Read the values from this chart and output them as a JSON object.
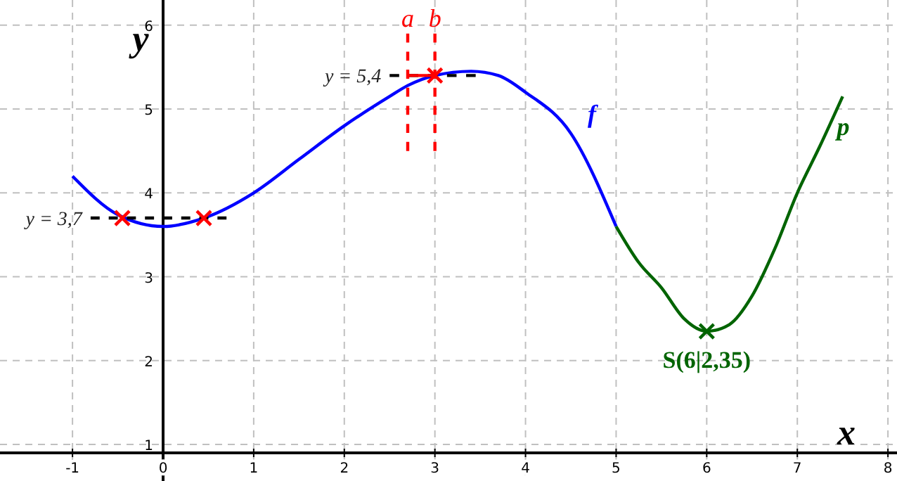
{
  "chart_data": {
    "type": "line",
    "xlabel": "x",
    "ylabel": "y",
    "xlim": [
      -1.8,
      8.1
    ],
    "ylim": [
      0.9,
      6.3
    ],
    "xticks": [
      -1,
      0,
      1,
      2,
      3,
      4,
      5,
      6,
      7,
      8
    ],
    "yticks": [
      1,
      2,
      3,
      4,
      5,
      6
    ],
    "grid": true,
    "series": [
      {
        "name": "f",
        "color": "#0000ff",
        "line_style": "solid",
        "x": [
          -1,
          -0.5,
          0,
          0.45,
          1,
          1.5,
          2,
          2.5,
          2.7,
          3,
          3.4,
          3.7,
          4,
          4.5,
          5
        ],
        "values": [
          4.2,
          3.74,
          3.6,
          3.7,
          4.0,
          4.4,
          4.8,
          5.15,
          5.28,
          5.4,
          5.45,
          5.4,
          5.2,
          4.71,
          3.6
        ]
      },
      {
        "name": "p",
        "color": "#006400",
        "line_style": "solid",
        "x": [
          5,
          5.25,
          5.5,
          5.75,
          6,
          6.25,
          6.5,
          6.75,
          7,
          7.25,
          7.5
        ],
        "values": [
          3.6,
          3.17,
          2.87,
          2.5,
          2.35,
          2.43,
          2.77,
          3.33,
          4.0,
          4.56,
          5.15
        ]
      },
      {
        "name": "y = 3,7",
        "type": "line",
        "color": "#000000",
        "line_style": "dashed",
        "x": [
          -0.8,
          0.7
        ],
        "values": [
          3.7,
          3.7
        ]
      },
      {
        "name": "y = 5,4",
        "type": "line",
        "color": "#000000",
        "line_style": "dashed",
        "x": [
          2.5,
          3.45
        ],
        "values": [
          5.4,
          5.4
        ]
      },
      {
        "name": "a",
        "type": "line",
        "color": "#ff0000",
        "line_style": "dashed",
        "x": [
          2.7,
          2.7
        ],
        "values": [
          4.5,
          5.9
        ]
      },
      {
        "name": "b",
        "type": "line",
        "color": "#ff0000",
        "line_style": "dashed",
        "x": [
          3,
          3
        ],
        "values": [
          4.5,
          5.9
        ]
      },
      {
        "type": "line",
        "color": "#ff0000",
        "line_style": "solid",
        "x": [
          2.7,
          3
        ],
        "values": [
          5.4,
          5.4
        ]
      },
      {
        "type": "scatter",
        "color": "#ff0000",
        "marker": "cross",
        "x": [
          -0.45,
          0.45,
          3
        ],
        "values": [
          3.7,
          3.7,
          5.4
        ]
      },
      {
        "type": "scatter",
        "color": "#006400",
        "marker": "cross",
        "x": [
          6
        ],
        "values": [
          2.35
        ]
      }
    ],
    "annotations": [
      {
        "text": "S(6|2,35)",
        "x": 6,
        "y": 2.35
      }
    ]
  }
}
